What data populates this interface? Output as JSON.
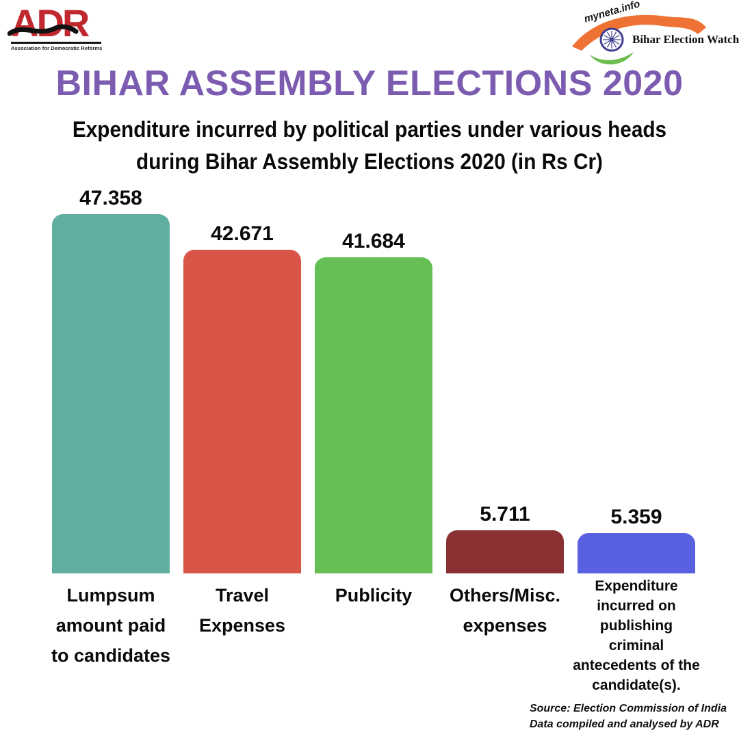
{
  "header": {
    "adr_logo": {
      "acronym": "ADR",
      "tagline": "Association for Democratic Reforms",
      "brand_red": "#c1282d"
    },
    "myneta_logo": {
      "site": "myneta.info",
      "label": "Bihar Election Watch",
      "saffron": "#ee7233",
      "india_green": "#6bbd4e",
      "chakra_navy": "#3d3e90"
    }
  },
  "title": {
    "text": "BIHAR ASSEMBLY ELECTIONS 2020",
    "color": "#7c5cb0"
  },
  "subtitle": {
    "line1": "Expenditure incurred by political parties under various heads",
    "line2": "during Bihar Assembly Elections 2020 (in Rs Cr)"
  },
  "chart_data": {
    "type": "bar",
    "title": "Expenditure incurred by political parties under various heads during Bihar Assembly Elections 2020 (in Rs Cr)",
    "unit": "Rs Cr",
    "categories": [
      "Lumpsum\namount paid\nto candidates",
      "Travel\nExpenses",
      "Publicity",
      "Others/Misc.\nexpenses",
      "Expenditure\nincurred on\npublishing\ncriminal\nantecedents of the\ncandidate(s)."
    ],
    "values": [
      47.358,
      42.671,
      41.684,
      5.711,
      5.359
    ],
    "bar_colors": [
      "#5fae9f",
      "#d85547",
      "#65bf55",
      "#8a3134",
      "#5a61e0"
    ],
    "ylim": [
      0,
      50
    ],
    "grid": false,
    "legend": "none",
    "value_labels_shown": true
  },
  "footer": {
    "source_line1": "Source: Election Commission of India",
    "source_line2": "Data compiled and analysed by ADR"
  }
}
